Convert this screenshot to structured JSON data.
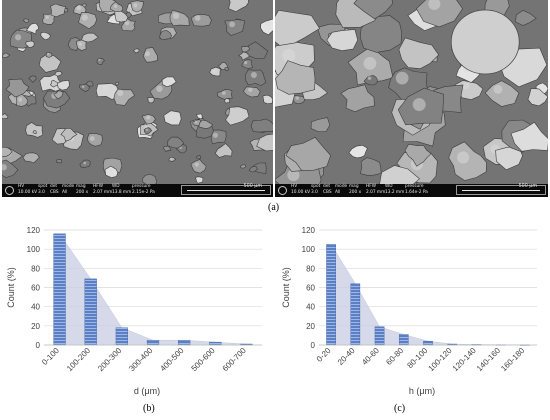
{
  "figure": {
    "panel_a_label": "(a)",
    "panel_b_label": "(b)",
    "panel_c_label": "(c)"
  },
  "sem_images": [
    {
      "hv_label": "HV",
      "hv": "10.00 kV",
      "spot_label": "spot",
      "spot": "3.0",
      "det_label": "det",
      "det": "CBS",
      "mode_label": "mode",
      "mode": "All",
      "mag_label": "mag",
      "mag": "200 x",
      "hfw_label": "HFW",
      "hfw": "2.07 mm",
      "wd_label": "WD",
      "wd": "13.8 mm",
      "pressure_label": "pressure",
      "pressure": "2.15e-2 Pa",
      "scale_label": "500 μm"
    },
    {
      "hv_label": "HV",
      "hv": "10.00 kV",
      "spot_label": "spot",
      "spot": "3.0",
      "det_label": "det",
      "det": "CBS",
      "mode_label": "mode",
      "mode": "All",
      "mag_label": "mag",
      "mag": "200 x",
      "hfw_label": "HFW",
      "hfw": "2.07 mm",
      "wd_label": "WD",
      "wd": "13.2 mm",
      "pressure_label": "pressure",
      "pressure": "1.64e-2 Pa",
      "scale_label": "500 μm"
    }
  ],
  "chart_data": [
    {
      "type": "bar",
      "ylabel": "Count (%)",
      "xlabel": "d (μm)",
      "categories": [
        "0-100",
        "100-200",
        "200-300",
        "300-400",
        "400-500",
        "500-600",
        "600-700"
      ],
      "values": [
        116,
        69,
        18,
        5,
        5,
        3,
        1
      ],
      "ylim": [
        0,
        120
      ],
      "yticks": [
        0,
        20,
        40,
        60,
        80,
        100,
        120
      ],
      "grid": true,
      "bar_color": "#5a7fc4",
      "envelope_color": "#c9cde3"
    },
    {
      "type": "bar",
      "ylabel": "Count (%)",
      "xlabel": "h (μm)",
      "categories": [
        "0-20",
        "20-40",
        "40-60",
        "60-80",
        "80-100",
        "100-120",
        "120-140",
        "140-160",
        "160-180"
      ],
      "values": [
        105,
        64,
        19,
        11,
        4,
        1,
        0.5,
        0.3,
        0.2
      ],
      "ylim": [
        0,
        120
      ],
      "yticks": [
        0,
        20,
        40,
        60,
        80,
        100,
        120
      ],
      "grid": true,
      "bar_color": "#5a7fc4",
      "envelope_color": "#c9cde3"
    }
  ]
}
